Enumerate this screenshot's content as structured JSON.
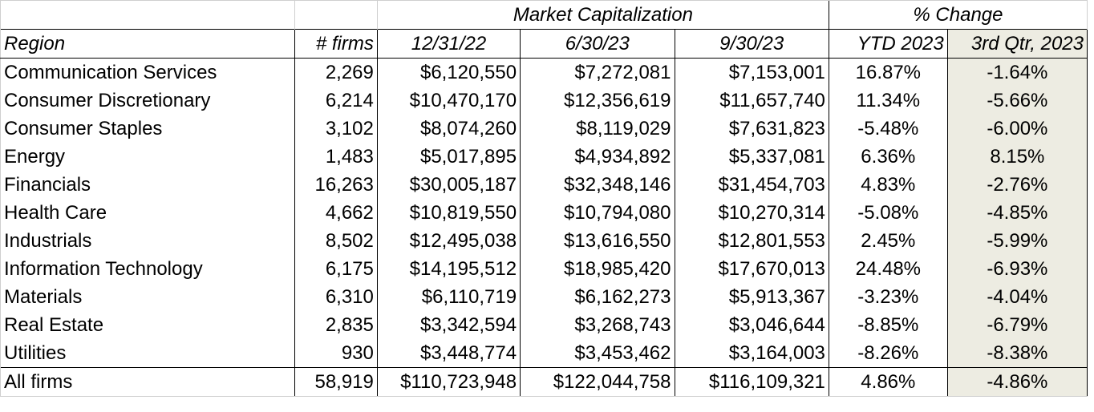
{
  "table": {
    "group_headers": {
      "market_cap": "Market Capitalization",
      "pct_change": "% Change"
    },
    "columns": [
      "Region",
      "# firms",
      "12/31/22",
      "6/30/23",
      "9/30/23",
      "YTD 2023",
      "3rd Qtr, 2023"
    ],
    "rows": [
      [
        "Communication Services",
        "2,269",
        "$6,120,550",
        "$7,272,081",
        "$7,153,001",
        "16.87%",
        "-1.64%"
      ],
      [
        "Consumer Discretionary",
        "6,214",
        "$10,470,170",
        "$12,356,619",
        "$11,657,740",
        "11.34%",
        "-5.66%"
      ],
      [
        "Consumer Staples",
        "3,102",
        "$8,074,260",
        "$8,119,029",
        "$7,631,823",
        "-5.48%",
        "-6.00%"
      ],
      [
        "Energy",
        "1,483",
        "$5,017,895",
        "$4,934,892",
        "$5,337,081",
        "6.36%",
        "8.15%"
      ],
      [
        "Financials",
        "16,263",
        "$30,005,187",
        "$32,348,146",
        "$31,454,703",
        "4.83%",
        "-2.76%"
      ],
      [
        "Health Care",
        "4,662",
        "$10,819,550",
        "$10,794,080",
        "$10,270,314",
        "-5.08%",
        "-4.85%"
      ],
      [
        "Industrials",
        "8,502",
        "$12,495,038",
        "$13,616,550",
        "$12,801,553",
        "2.45%",
        "-5.99%"
      ],
      [
        "Information Technology",
        "6,175",
        "$14,195,512",
        "$18,985,420",
        "$17,670,013",
        "24.48%",
        "-6.93%"
      ],
      [
        "Materials",
        "6,310",
        "$6,110,719",
        "$6,162,273",
        "$5,913,367",
        "-3.23%",
        "-4.04%"
      ],
      [
        "Real Estate",
        "2,835",
        "$3,342,594",
        "$3,268,743",
        "$3,046,644",
        "-8.85%",
        "-6.79%"
      ],
      [
        "Utilities",
        "930",
        "$3,448,774",
        "$3,453,462",
        "$3,164,003",
        "-8.26%",
        "-8.38%"
      ],
      [
        "All firms",
        "58,919",
        "$110,723,948",
        "$122,044,758",
        "$116,109,321",
        "4.86%",
        "-4.86%"
      ]
    ]
  },
  "colors": {
    "highlight_column": "#edece2",
    "gridline": "#cfcfcf",
    "border": "#000000"
  }
}
